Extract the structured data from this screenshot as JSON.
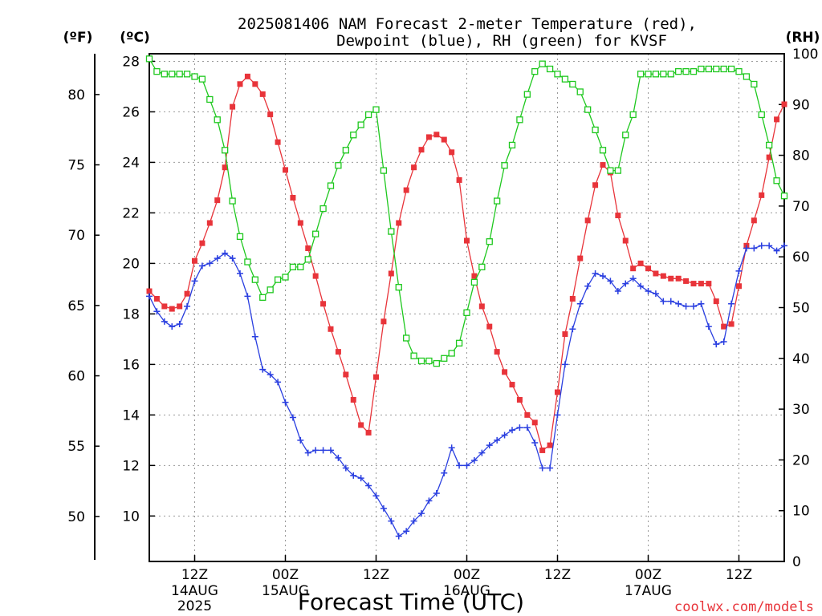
{
  "chart_data": {
    "type": "line",
    "title_line1": "2025081406 NAM Forecast 2-meter Temperature (red),",
    "title_line2": "Dewpoint (blue), RH (green) for KVSF",
    "xlabel": "Forecast Time (UTC)",
    "units": {
      "fahrenheit": "(ºF)",
      "celsius": "(ºC)",
      "rh": "(RH)"
    },
    "credit": "coolwx.com/models",
    "x_unit": "hours after 2025-08-14 06Z",
    "xlim": [
      6,
      90
    ],
    "c_lim": [
      8.2,
      28.3
    ],
    "f_lim": [
      46.8,
      82.9
    ],
    "rh_lim": [
      0,
      100
    ],
    "x_ticks": [
      {
        "x": 12,
        "l1": "12Z",
        "l2": "14AUG",
        "l3": "2025"
      },
      {
        "x": 24,
        "l1": "00Z",
        "l2": "15AUG",
        "l3": ""
      },
      {
        "x": 36,
        "l1": "12Z",
        "l2": "",
        "l3": ""
      },
      {
        "x": 48,
        "l1": "00Z",
        "l2": "16AUG",
        "l3": ""
      },
      {
        "x": 60,
        "l1": "12Z",
        "l2": "",
        "l3": ""
      },
      {
        "x": 72,
        "l1": "00Z",
        "l2": "17AUG",
        "l3": ""
      },
      {
        "x": 84,
        "l1": "12Z",
        "l2": "",
        "l3": ""
      }
    ],
    "c_ticks": [
      10,
      12,
      14,
      16,
      18,
      20,
      22,
      24,
      26,
      28
    ],
    "f_ticks": [
      50,
      55,
      60,
      65,
      70,
      75,
      80
    ],
    "rh_ticks": [
      0,
      10,
      20,
      30,
      40,
      50,
      60,
      70,
      80,
      90,
      100
    ],
    "grid": true,
    "colors": {
      "temperature": "#e8343a",
      "dewpoint": "#2a3fe0",
      "rh": "#1ec81e"
    },
    "series": [
      {
        "name": "Temperature",
        "unit": "C",
        "x": [
          6,
          7,
          8,
          9,
          10,
          11,
          12,
          13,
          14,
          15,
          16,
          17,
          18,
          19,
          20,
          21,
          22,
          23,
          24,
          25,
          26,
          27,
          28,
          29,
          30,
          31,
          32,
          33,
          34,
          35,
          36,
          37,
          38,
          39,
          40,
          41,
          42,
          43,
          44,
          45,
          46,
          47,
          48,
          49,
          50,
          51,
          52,
          53,
          54,
          55,
          56,
          57,
          58,
          59,
          60,
          61,
          62,
          63,
          64,
          65,
          66,
          67,
          68,
          69,
          70,
          71,
          72,
          73,
          74,
          75,
          76,
          77,
          78,
          79,
          80,
          81,
          82,
          83,
          84,
          85,
          86,
          87,
          88,
          89,
          90
        ],
        "values": [
          18.9,
          18.6,
          18.3,
          18.2,
          18.3,
          18.8,
          20.1,
          20.8,
          21.6,
          22.5,
          23.8,
          26.2,
          27.1,
          27.4,
          27.1,
          26.7,
          25.9,
          24.8,
          23.7,
          22.6,
          21.6,
          20.6,
          19.5,
          18.4,
          17.4,
          16.5,
          15.6,
          14.6,
          13.6,
          13.3,
          15.5,
          17.7,
          19.6,
          21.6,
          22.9,
          23.8,
          24.5,
          25.0,
          25.1,
          24.9,
          24.4,
          23.3,
          20.9,
          19.5,
          18.3,
          17.5,
          16.5,
          15.7,
          15.2,
          14.6,
          14.0,
          13.7,
          12.6,
          12.8,
          14.9,
          17.2,
          18.6,
          20.2,
          21.7,
          23.1,
          23.9,
          23.6,
          21.9,
          20.9,
          19.8,
          20.0,
          19.8,
          19.6,
          19.5,
          19.4,
          19.4,
          19.3,
          19.2,
          19.2,
          19.2,
          18.5,
          17.5,
          17.6,
          19.1,
          20.7,
          21.7,
          22.7,
          24.2,
          25.7,
          26.3
        ]
      },
      {
        "name": "Dewpoint",
        "unit": "C",
        "x": [
          6,
          7,
          8,
          9,
          10,
          11,
          12,
          13,
          14,
          15,
          16,
          17,
          18,
          19,
          20,
          21,
          22,
          23,
          24,
          25,
          26,
          27,
          28,
          29,
          30,
          31,
          32,
          33,
          34,
          35,
          36,
          37,
          38,
          39,
          40,
          41,
          42,
          43,
          44,
          45,
          46,
          47,
          48,
          49,
          50,
          51,
          52,
          53,
          54,
          55,
          56,
          57,
          58,
          59,
          60,
          61,
          62,
          63,
          64,
          65,
          66,
          67,
          68,
          69,
          70,
          71,
          72,
          73,
          74,
          75,
          76,
          77,
          78,
          79,
          80,
          81,
          82,
          83,
          84,
          85,
          86,
          87,
          88,
          89,
          90
        ],
        "values": [
          18.7,
          18.1,
          17.7,
          17.5,
          17.6,
          18.3,
          19.3,
          19.9,
          20.0,
          20.2,
          20.4,
          20.2,
          19.6,
          18.7,
          17.1,
          15.8,
          15.6,
          15.3,
          14.5,
          13.9,
          13.0,
          12.5,
          12.6,
          12.6,
          12.6,
          12.3,
          11.9,
          11.6,
          11.5,
          11.2,
          10.8,
          10.3,
          9.8,
          9.2,
          9.4,
          9.8,
          10.1,
          10.6,
          10.9,
          11.7,
          12.7,
          12.0,
          12.0,
          12.2,
          12.5,
          12.8,
          13.0,
          13.2,
          13.4,
          13.5,
          13.5,
          12.9,
          11.9,
          11.9,
          14.0,
          16.0,
          17.4,
          18.4,
          19.1,
          19.6,
          19.5,
          19.3,
          18.9,
          19.2,
          19.4,
          19.1,
          18.9,
          18.8,
          18.5,
          18.5,
          18.4,
          18.3,
          18.3,
          18.4,
          17.5,
          16.8,
          16.9,
          18.4,
          19.7,
          20.6,
          20.6,
          20.7,
          20.7,
          20.5,
          20.7
        ]
      },
      {
        "name": "RH",
        "unit": "%",
        "x": [
          6,
          7,
          8,
          9,
          10,
          11,
          12,
          13,
          14,
          15,
          16,
          17,
          18,
          19,
          20,
          21,
          22,
          23,
          24,
          25,
          26,
          27,
          28,
          29,
          30,
          31,
          32,
          33,
          34,
          35,
          36,
          37,
          38,
          39,
          40,
          41,
          42,
          43,
          44,
          45,
          46,
          47,
          48,
          49,
          50,
          51,
          52,
          53,
          54,
          55,
          56,
          57,
          58,
          59,
          60,
          61,
          62,
          63,
          64,
          65,
          66,
          67,
          68,
          69,
          70,
          71,
          72,
          73,
          74,
          75,
          76,
          77,
          78,
          79,
          80,
          81,
          82,
          83,
          84,
          85,
          86,
          87,
          88,
          89,
          90
        ],
        "values": [
          99,
          96.5,
          96,
          96,
          96,
          96,
          95.5,
          95,
          91,
          87,
          81,
          71,
          64,
          59,
          55.5,
          52,
          53.5,
          55.5,
          56,
          58,
          58,
          59.5,
          64.5,
          69.5,
          74,
          78,
          81,
          84,
          86,
          88,
          89,
          77,
          65,
          54,
          44,
          40.5,
          39.5,
          39.5,
          39,
          40,
          41,
          43,
          49,
          55,
          58,
          63,
          71,
          78,
          82,
          87,
          92,
          96.5,
          98,
          97,
          96,
          95,
          94,
          92.5,
          89,
          85,
          81,
          77,
          77,
          84,
          88,
          96,
          96,
          96,
          96,
          96,
          96.5,
          96.5,
          96.5,
          97,
          97,
          97,
          97,
          97,
          96.5,
          95.5,
          94,
          88,
          82,
          75,
          72
        ]
      }
    ]
  }
}
